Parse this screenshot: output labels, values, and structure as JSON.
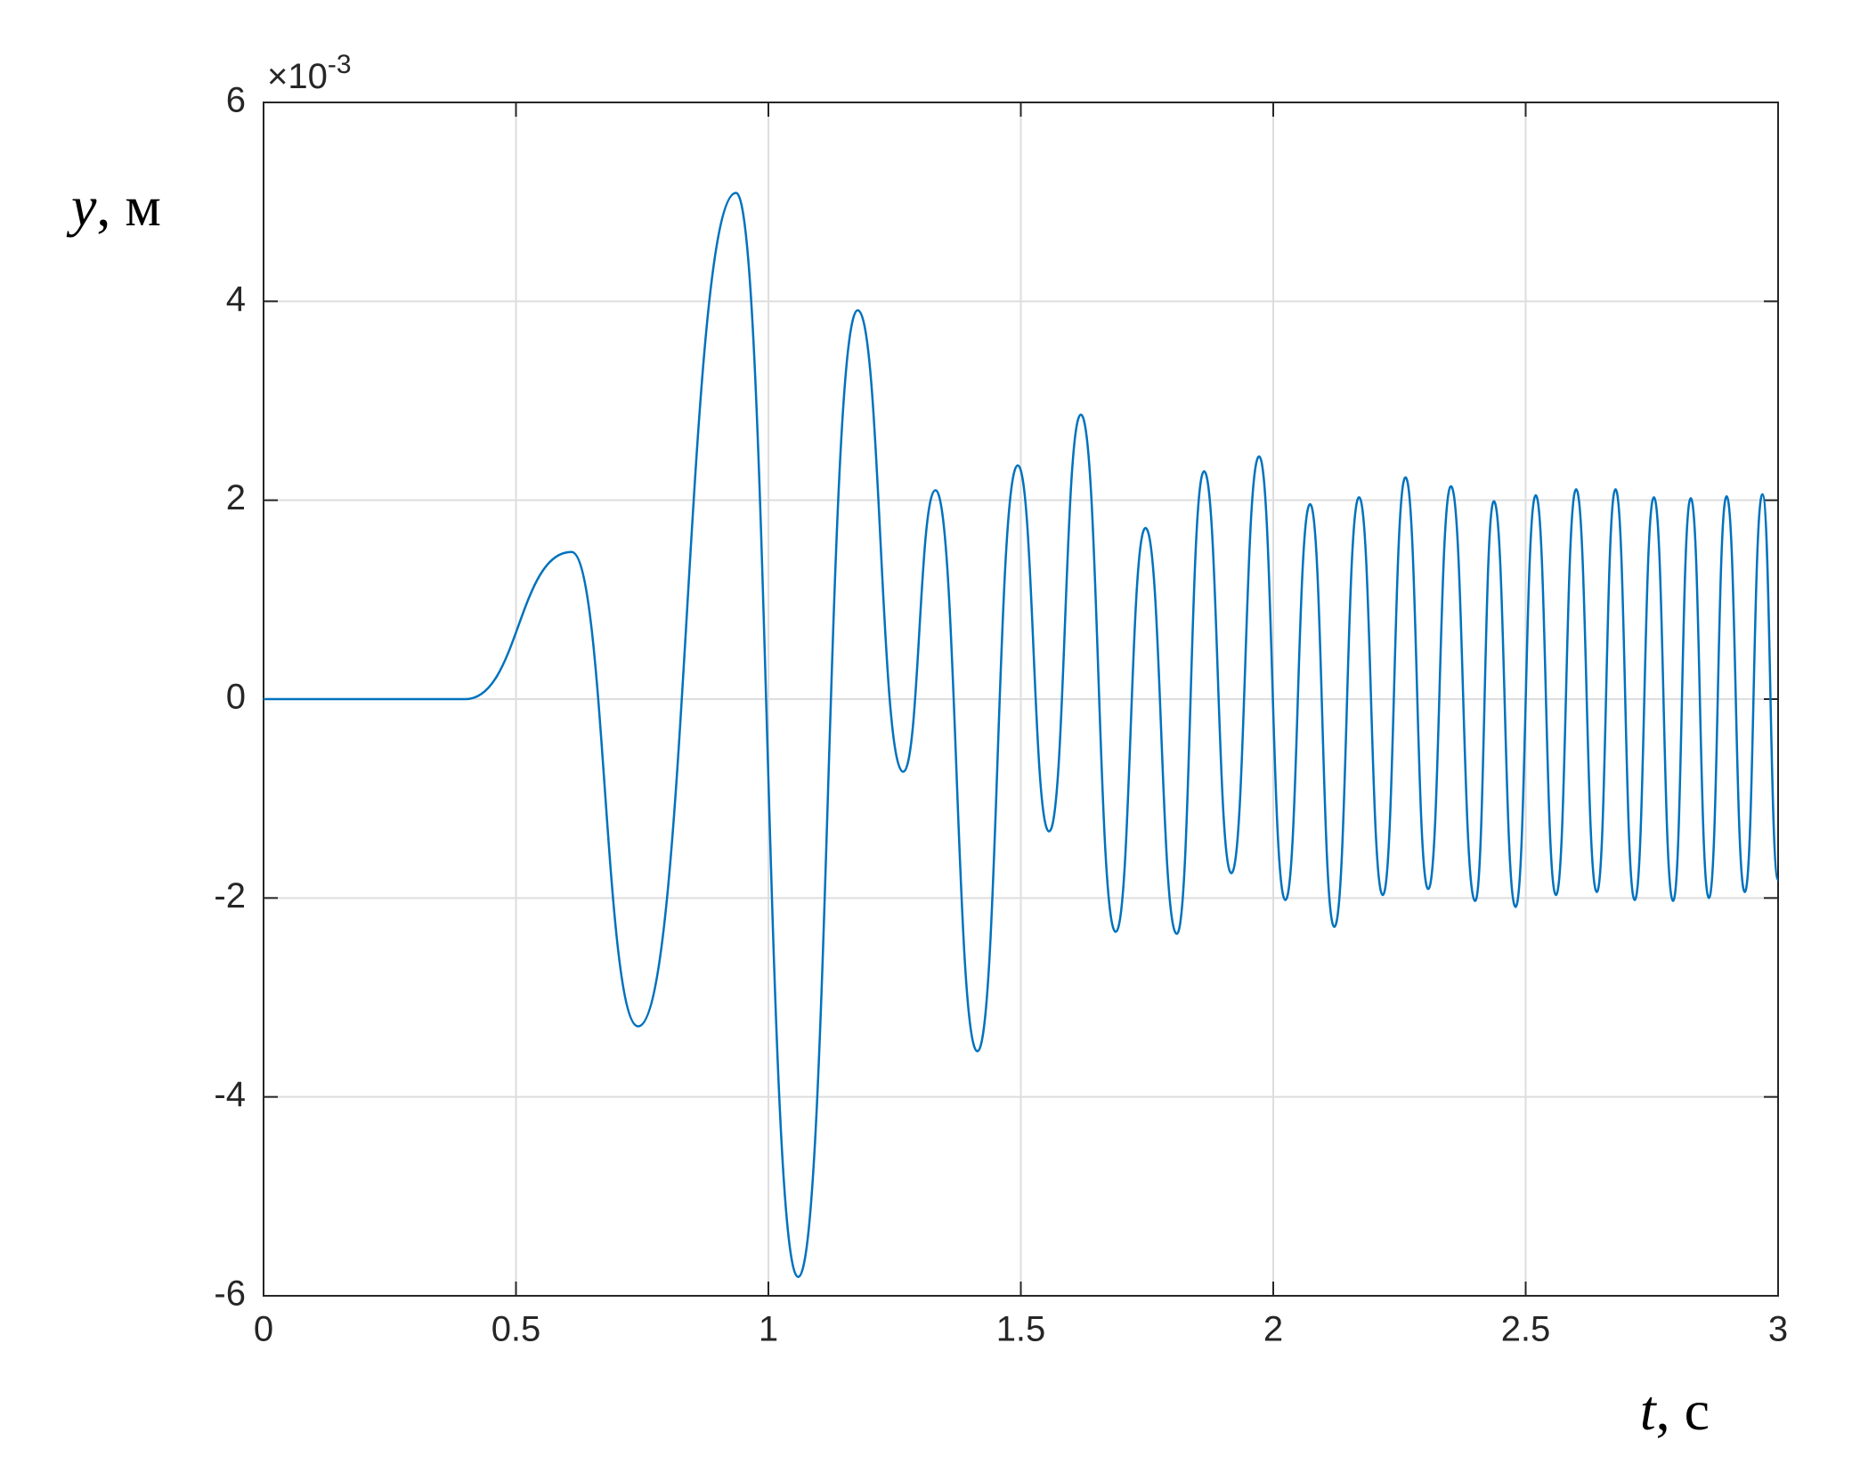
{
  "chart_data": {
    "type": "line",
    "ylabel": {
      "var": "y",
      "unit": ", м"
    },
    "xlabel": {
      "var": "t",
      "unit": ", с"
    },
    "y_multiplier": {
      "base": "×10",
      "exponent": "-3"
    },
    "x": [
      0,
      0.4,
      0.61,
      0.742,
      0.936,
      1.059,
      1.177,
      1.267,
      1.331,
      1.414,
      1.494,
      1.556,
      1.619,
      1.688,
      1.747,
      1.809,
      1.863,
      1.917,
      1.972,
      2.024,
      2.073,
      2.121,
      2.17,
      2.217,
      2.262,
      2.307,
      2.352,
      2.4,
      2.437,
      2.48,
      2.52,
      2.56,
      2.6,
      2.641,
      2.678,
      2.716,
      2.754,
      2.792,
      2.827,
      2.863,
      2.898,
      2.934,
      2.969,
      3.0
    ],
    "values": [
      0,
      0,
      1.48,
      -3.29,
      5.09,
      -5.81,
      3.91,
      -0.73,
      2.1,
      -3.54,
      2.35,
      -1.33,
      2.86,
      -2.34,
      1.72,
      -2.36,
      2.29,
      -1.75,
      2.44,
      -2.02,
      1.96,
      -2.29,
      2.03,
      -1.97,
      2.23,
      -1.91,
      2.14,
      -2.03,
      1.99,
      -2.09,
      2.05,
      -1.97,
      2.11,
      -1.94,
      2.11,
      -2.02,
      2.03,
      -2.03,
      2.02,
      -2.0,
      2.04,
      -1.94,
      2.06,
      -1.82
    ],
    "color": "#0072bd",
    "xlim": [
      0,
      3
    ],
    "xticks": [
      0,
      0.5,
      1,
      1.5,
      2,
      2.5,
      3
    ],
    "ylim": [
      -6,
      6
    ],
    "yticks": [
      -6,
      -4,
      -2,
      0,
      2,
      4,
      6
    ],
    "grid": true
  }
}
